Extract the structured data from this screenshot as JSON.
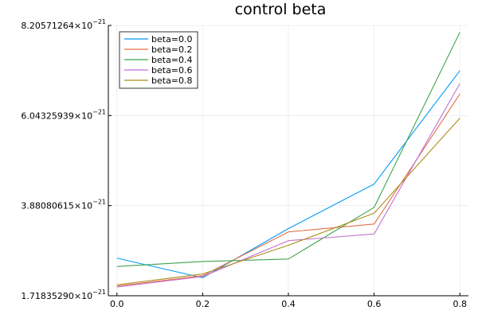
{
  "chart_data": {
    "type": "line",
    "title": "control beta",
    "xlabel": "",
    "ylabel": "",
    "x": [
      0.0,
      0.2,
      0.4,
      0.6,
      0.8
    ],
    "xlim": [
      -0.02,
      0.82
    ],
    "ylim_mantissa": [
      1.7183529,
      8.20571264
    ],
    "exponent_label": "−21",
    "x_ticks": [
      {
        "value": 0.0,
        "label": "0.0"
      },
      {
        "value": 0.2,
        "label": "0.2"
      },
      {
        "value": 0.4,
        "label": "0.4"
      },
      {
        "value": 0.6,
        "label": "0.6"
      },
      {
        "value": 0.8,
        "label": "0.8"
      }
    ],
    "y_ticks": [
      {
        "value": 1.7183529,
        "label": "1.71835290×10"
      },
      {
        "value": 3.88080615,
        "label": "3.88080615×10"
      },
      {
        "value": 6.04325939,
        "label": "6.04325939×10"
      },
      {
        "value": 8.20571264,
        "label": "8.20571264×10"
      }
    ],
    "grid": true,
    "legend_position": "top-left",
    "series": [
      {
        "name": "beta=0.0",
        "color": "#009af9",
        "values": [
          2.62,
          2.15,
          3.33,
          4.4,
          7.12
        ]
      },
      {
        "name": "beta=0.2",
        "color": "#e26f46",
        "values": [
          1.95,
          2.2,
          3.25,
          3.44,
          6.56
        ]
      },
      {
        "name": "beta=0.4",
        "color": "#3da44d",
        "values": [
          2.42,
          2.54,
          2.6,
          3.84,
          8.04
        ]
      },
      {
        "name": "beta=0.6",
        "color": "#c271d2",
        "values": [
          1.93,
          2.18,
          3.04,
          3.2,
          6.81
        ]
      },
      {
        "name": "beta=0.8",
        "color": "#ac8e18",
        "values": [
          1.98,
          2.24,
          2.93,
          3.7,
          5.98
        ]
      }
    ]
  }
}
